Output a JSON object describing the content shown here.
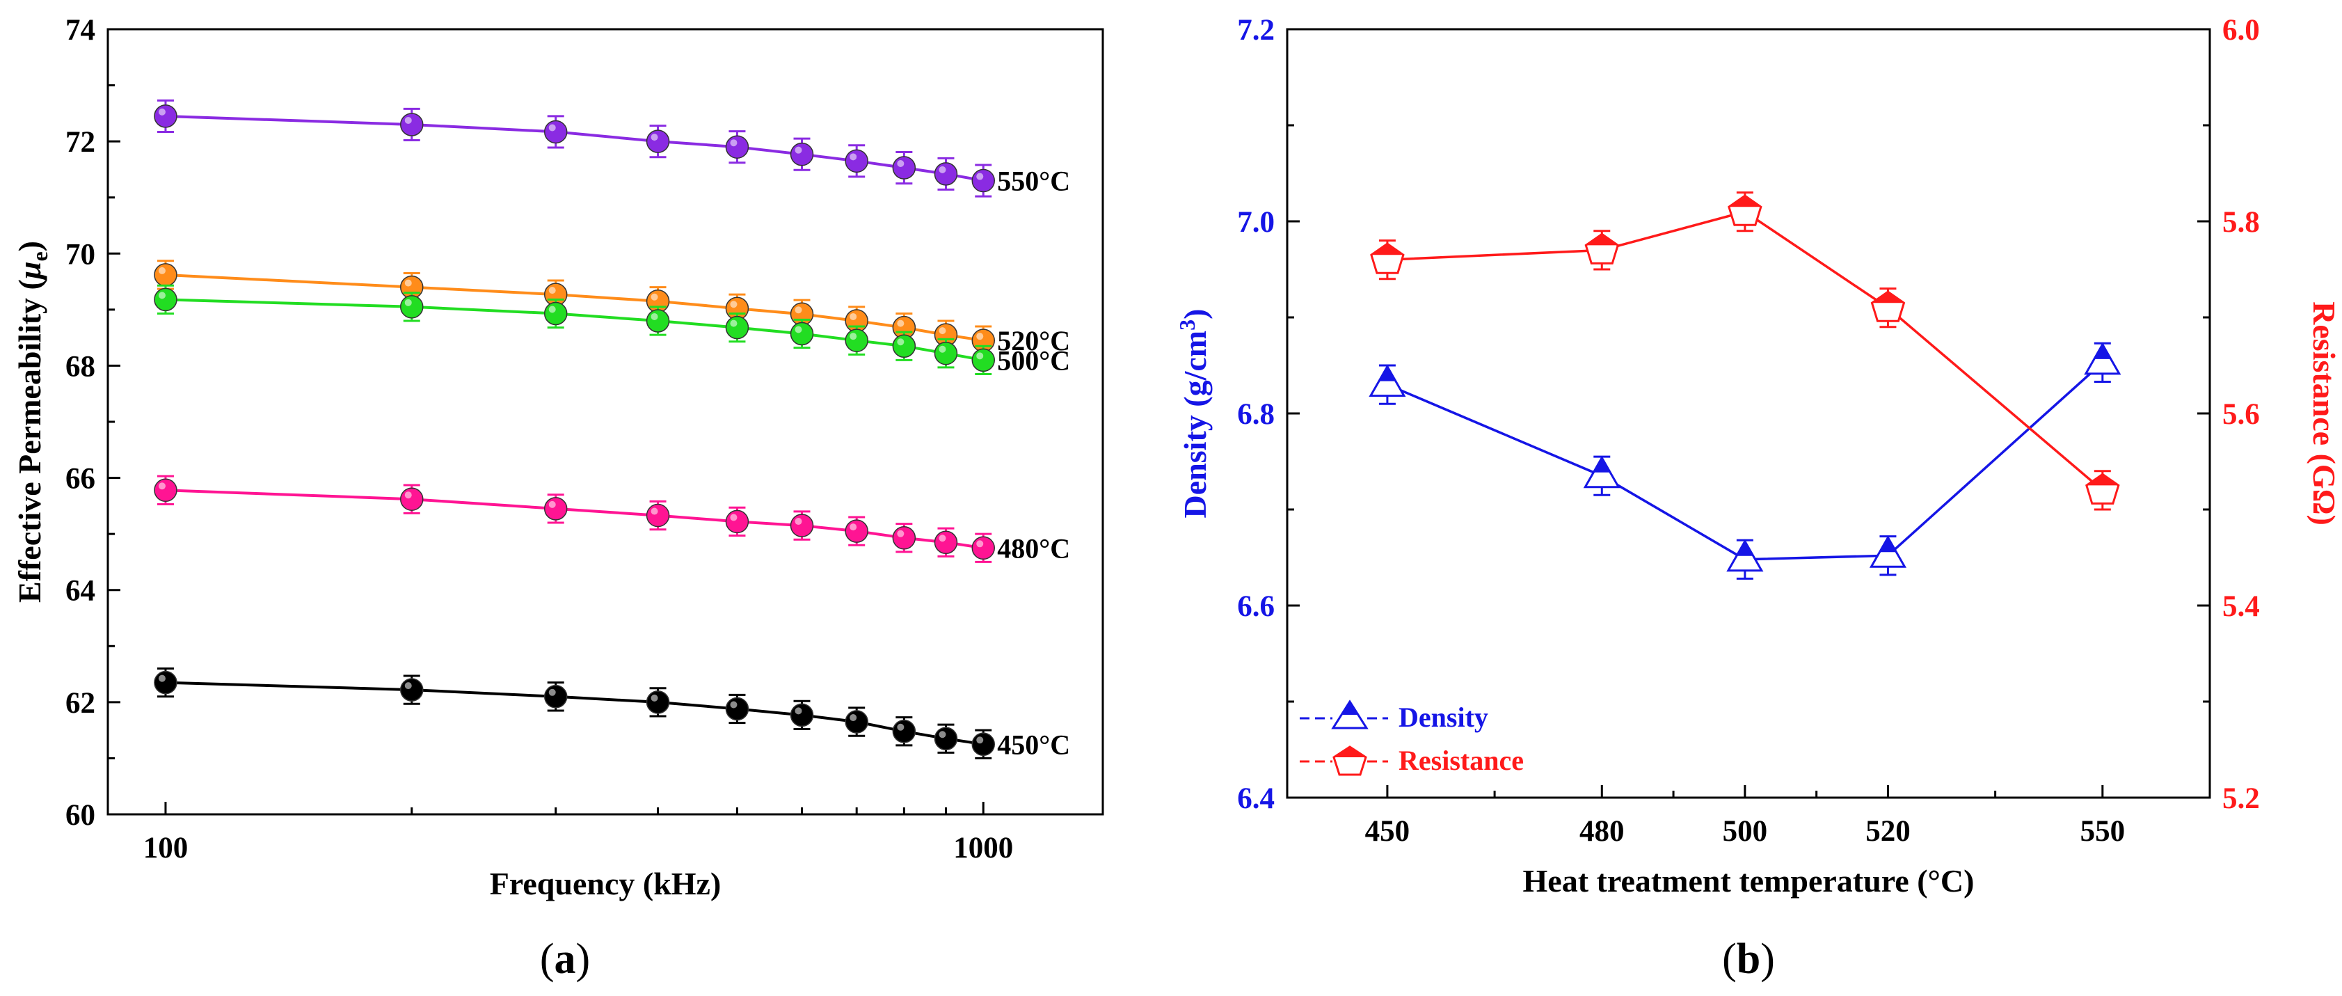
{
  "chart_data": [
    {
      "panel": "(a)",
      "panel_letter": "a",
      "type": "line",
      "xscale": "log",
      "xlabel": "Frequency (kHz)",
      "ylabel_main": "Effective Permeability (",
      "ylabel_symbol": "μ",
      "ylabel_sub": "e",
      "ylabel_close": ")",
      "xlim": [
        85,
        1400
      ],
      "ylim": [
        60,
        74
      ],
      "xticks": [
        100,
        1000
      ],
      "xtick_labels": [
        "100",
        "1000"
      ],
      "yticks": [
        60,
        62,
        64,
        66,
        68,
        70,
        72,
        74
      ],
      "ytick_labels": [
        "60",
        "62",
        "64",
        "66",
        "68",
        "70",
        "72",
        "74"
      ],
      "x": [
        100,
        200,
        300,
        400,
        500,
        600,
        700,
        800,
        900,
        1000
      ],
      "series": [
        {
          "name": "550°C",
          "color": "#8a2be2",
          "values": [
            72.45,
            72.3,
            72.17,
            72.0,
            71.9,
            71.77,
            71.65,
            71.53,
            71.42,
            71.3
          ],
          "error": 0.28
        },
        {
          "name": "520°C",
          "color": "#ff8c1a",
          "values": [
            69.62,
            69.4,
            69.27,
            69.15,
            69.02,
            68.92,
            68.8,
            68.68,
            68.55,
            68.45
          ],
          "error": 0.25
        },
        {
          "name": "500°C",
          "color": "#22dd22",
          "values": [
            69.18,
            69.05,
            68.93,
            68.8,
            68.68,
            68.57,
            68.45,
            68.35,
            68.22,
            68.1
          ],
          "error": 0.25
        },
        {
          "name": "480°C",
          "color": "#ff1493",
          "values": [
            65.78,
            65.62,
            65.45,
            65.33,
            65.22,
            65.15,
            65.05,
            64.93,
            64.85,
            64.75
          ],
          "error": 0.25
        },
        {
          "name": "450°C",
          "color": "#000000",
          "values": [
            62.35,
            62.22,
            62.1,
            62.0,
            61.88,
            61.77,
            61.65,
            61.48,
            61.35,
            61.25
          ],
          "error": 0.25
        }
      ]
    },
    {
      "panel": "(b)",
      "panel_letter": "b",
      "type": "line",
      "xlabel": "Heat treatment temperature (°C)",
      "ylabel_left_main": "Density (g/cm",
      "ylabel_left_sup": "3",
      "ylabel_left_close": ")",
      "ylabel_right": "Resistance (GΩ)",
      "categories": [
        "450",
        "480",
        "500",
        "520",
        "550"
      ],
      "x": [
        450,
        480,
        500,
        520,
        550
      ],
      "xlim": [
        436,
        565
      ],
      "xticks": [
        450,
        480,
        500,
        520,
        550
      ],
      "xtick_labels": [
        "450",
        "480",
        "500",
        "520",
        "550"
      ],
      "ylim_left": [
        6.4,
        7.2
      ],
      "yticks_left": [
        6.4,
        6.6,
        6.8,
        7.0,
        7.2
      ],
      "ytick_labels_left": [
        "6.4",
        "6.6",
        "6.8",
        "7.0",
        "7.2"
      ],
      "ylim_right": [
        5.2,
        6.0
      ],
      "yticks_right": [
        5.2,
        5.4,
        5.6,
        5.8,
        6.0
      ],
      "ytick_labels_right": [
        "5.2",
        "5.4",
        "5.6",
        "5.8",
        "6.0"
      ],
      "legend_position": "bottom-left",
      "series": [
        {
          "name": "Density",
          "axis": "left",
          "marker": "triangle",
          "color": "#1515e6",
          "values": [
            6.83,
            6.735,
            6.648,
            6.652,
            6.853
          ],
          "error": 0.02
        },
        {
          "name": "Resistance",
          "axis": "right",
          "marker": "pentagon",
          "color": "#ff1a1a",
          "values": [
            5.76,
            5.77,
            5.81,
            5.71,
            5.52
          ],
          "error": 0.02
        }
      ]
    }
  ]
}
